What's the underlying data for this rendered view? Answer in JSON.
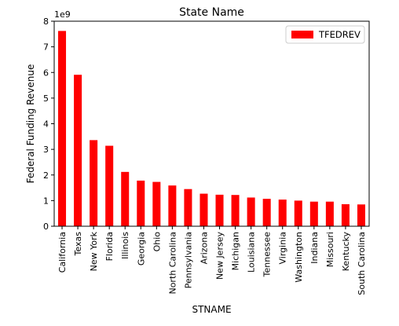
{
  "chart_data": {
    "type": "bar",
    "title": "State Name",
    "xlabel": "STNAME",
    "ylabel": "Federal Funding Revenue",
    "y_scale_label": "1e9",
    "ylim": [
      0,
      8
    ],
    "y_ticks": [
      0,
      1,
      2,
      3,
      4,
      5,
      6,
      7,
      8
    ],
    "grid": false,
    "legend_position": "top-right",
    "categories": [
      "California",
      "Texas",
      "New York",
      "Florida",
      "Illinois",
      "Georgia",
      "Ohio",
      "North Carolina",
      "Pennsylvania",
      "Arizona",
      "New Jersey",
      "Michigan",
      "Louisiana",
      "Tennessee",
      "Virginia",
      "Washington",
      "Indiana",
      "Missouri",
      "Kentucky",
      "South Carolina"
    ],
    "series": [
      {
        "name": "TFEDREV",
        "color": "#ff0000",
        "values": [
          7.62,
          5.91,
          3.36,
          3.14,
          2.12,
          1.78,
          1.73,
          1.59,
          1.45,
          1.27,
          1.23,
          1.22,
          1.12,
          1.07,
          1.04,
          1.0,
          0.96,
          0.96,
          0.86,
          0.85
        ]
      }
    ]
  }
}
